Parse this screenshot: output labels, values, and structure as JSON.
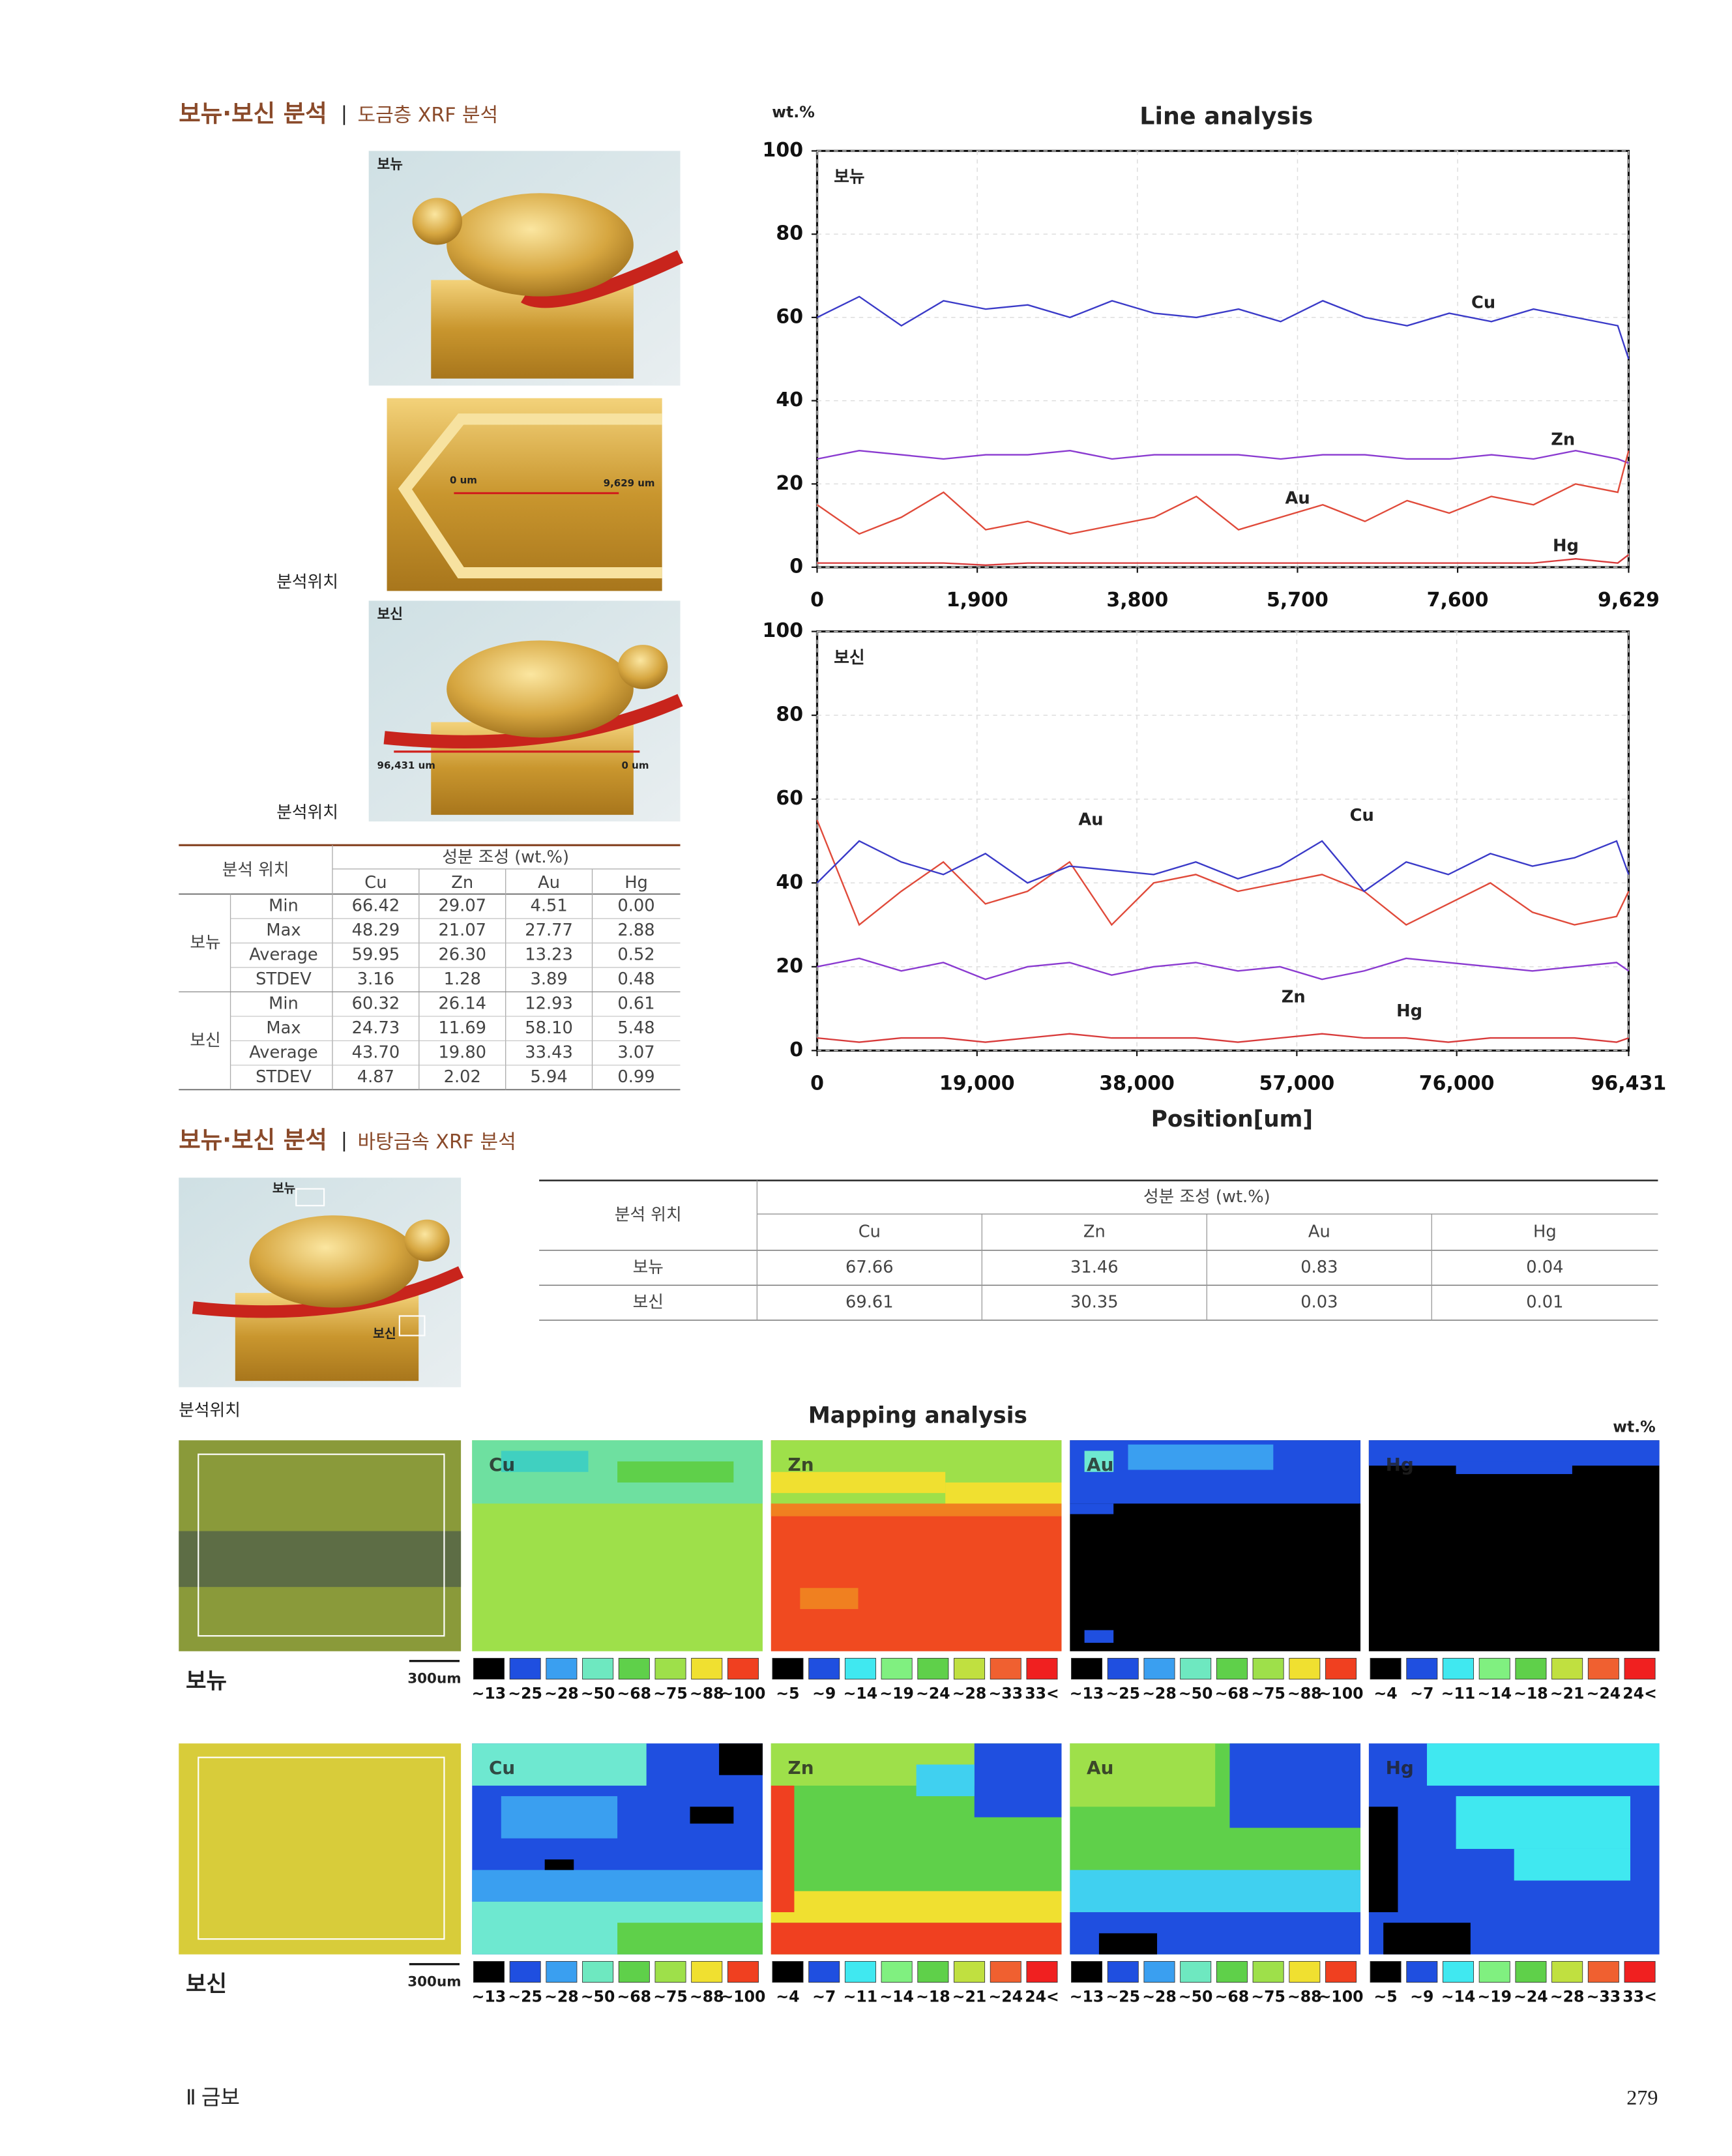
{
  "header1": {
    "title": "보뉴·보신 분석",
    "subtitle": "도금층 XRF 분석"
  },
  "photos1": {
    "bonyu": "보뉴",
    "bosin": "보신",
    "position_labels": [
      "분석위치",
      "분석위치"
    ],
    "scale_labels": [
      "0 um",
      "9,629 um",
      "96,431 um",
      "0 um"
    ]
  },
  "table1": {
    "header": [
      "분석 위치",
      "성분 조성 (wt.%)"
    ],
    "columns": [
      "Cu",
      "Zn",
      "Au",
      "Hg"
    ],
    "groups": [
      {
        "name": "보뉴",
        "rows": [
          [
            "Min",
            "66.42",
            "29.07",
            "4.51",
            "0.00"
          ],
          [
            "Max",
            "48.29",
            "21.07",
            "27.77",
            "2.88"
          ],
          [
            "Average",
            "59.95",
            "26.30",
            "13.23",
            "0.52"
          ],
          [
            "STDEV",
            "3.16",
            "1.28",
            "3.89",
            "0.48"
          ]
        ]
      },
      {
        "name": "보신",
        "rows": [
          [
            "Min",
            "60.32",
            "26.14",
            "12.93",
            "0.61"
          ],
          [
            "Max",
            "24.73",
            "11.69",
            "58.10",
            "5.48"
          ],
          [
            "Average",
            "43.70",
            "19.80",
            "33.43",
            "3.07"
          ],
          [
            "STDEV",
            "4.87",
            "2.02",
            "5.94",
            "0.99"
          ]
        ]
      }
    ]
  },
  "chart_data": [
    {
      "type": "line",
      "title": "Line analysis",
      "y_label": "wt.%",
      "panel_label": "보뉴",
      "x": [
        0,
        500,
        1000,
        1500,
        2000,
        2500,
        3000,
        3500,
        4000,
        4500,
        5000,
        5500,
        6000,
        6500,
        7000,
        7500,
        8000,
        8500,
        9000,
        9500,
        9629
      ],
      "xlim": [
        0,
        9629
      ],
      "xticks": [
        0,
        {
          "value": 1900,
          "label": "1,900"
        },
        {
          "value": 3800,
          "label": "3,800"
        },
        {
          "value": 5700,
          "label": "5,700"
        },
        {
          "value": 7600,
          "label": "7,600"
        },
        {
          "value": 9629,
          "label": "9,629"
        }
      ],
      "ylim": [
        0,
        100
      ],
      "yticks": [
        0,
        20,
        40,
        60,
        80,
        100
      ],
      "grid": true,
      "series": [
        {
          "name": "Cu",
          "color": "#3a3ac8",
          "values": [
            60,
            65,
            58,
            64,
            62,
            63,
            60,
            64,
            61,
            60,
            62,
            59,
            64,
            60,
            58,
            61,
            59,
            62,
            60,
            58,
            50
          ]
        },
        {
          "name": "Zn",
          "color": "#8a3ad0",
          "values": [
            26,
            28,
            27,
            26,
            27,
            27,
            28,
            26,
            27,
            27,
            27,
            26,
            27,
            27,
            26,
            26,
            27,
            26,
            28,
            26,
            25
          ]
        },
        {
          "name": "Au",
          "color": "#e04a3a",
          "values": [
            15,
            8,
            12,
            18,
            9,
            11,
            8,
            10,
            12,
            17,
            9,
            12,
            15,
            11,
            16,
            13,
            17,
            15,
            20,
            18,
            28
          ]
        },
        {
          "name": "Hg",
          "color": "#d83a3a",
          "values": [
            1,
            1,
            1,
            1,
            0.5,
            1,
            1,
            1,
            1,
            1,
            1,
            1,
            1,
            1,
            1,
            1,
            1,
            1,
            2,
            1,
            3
          ]
        }
      ]
    },
    {
      "type": "line",
      "panel_label": "보신",
      "x_label": "Position[um]",
      "x": [
        0,
        5000,
        10000,
        15000,
        20000,
        25000,
        30000,
        35000,
        40000,
        45000,
        50000,
        55000,
        60000,
        65000,
        70000,
        75000,
        80000,
        85000,
        90000,
        95000,
        96431
      ],
      "xlim": [
        0,
        96431
      ],
      "xticks": [
        0,
        {
          "value": 19000,
          "label": "19,000"
        },
        {
          "value": 38000,
          "label": "38,000"
        },
        {
          "value": 57000,
          "label": "57,000"
        },
        {
          "value": 76000,
          "label": "76,000"
        },
        {
          "value": 96431,
          "label": "96,431"
        }
      ],
      "ylim": [
        0,
        100
      ],
      "yticks": [
        0,
        20,
        40,
        60,
        80,
        100
      ],
      "grid": true,
      "series": [
        {
          "name": "Au",
          "color": "#e04a3a",
          "values": [
            55,
            30,
            38,
            45,
            35,
            38,
            45,
            30,
            40,
            42,
            38,
            40,
            42,
            38,
            30,
            35,
            40,
            33,
            30,
            32,
            38
          ]
        },
        {
          "name": "Cu",
          "color": "#3a3ac8",
          "values": [
            40,
            50,
            45,
            42,
            47,
            40,
            44,
            43,
            42,
            45,
            41,
            44,
            50,
            38,
            45,
            42,
            47,
            44,
            46,
            50,
            42
          ]
        },
        {
          "name": "Zn",
          "color": "#8a3ad0",
          "values": [
            20,
            22,
            19,
            21,
            17,
            20,
            21,
            18,
            20,
            21,
            19,
            20,
            17,
            19,
            22,
            21,
            20,
            19,
            20,
            21,
            19
          ]
        },
        {
          "name": "Hg",
          "color": "#d83a3a",
          "values": [
            3,
            2,
            3,
            3,
            2,
            3,
            4,
            3,
            3,
            3,
            2,
            3,
            4,
            3,
            3,
            2,
            3,
            3,
            3,
            2,
            3
          ]
        }
      ]
    }
  ],
  "header2": {
    "title": "보뉴·보신 분석",
    "subtitle": "바탕금속 XRF 분석"
  },
  "photo2": {
    "labels": [
      "보뉴",
      "보신"
    ],
    "position_label": "분석위치"
  },
  "table2": {
    "header": [
      "분석 위치",
      "성분 조성 (wt.%)"
    ],
    "columns": [
      "Cu",
      "Zn",
      "Au",
      "Hg"
    ],
    "rows": [
      [
        "보뉴",
        "67.66",
        "31.46",
        "0.83",
        "0.04"
      ],
      [
        "보신",
        "69.61",
        "30.35",
        "0.03",
        "0.01"
      ]
    ]
  },
  "mapping": {
    "title": "Mapping analysis",
    "unit": "wt.%",
    "scale": "300um",
    "rows": [
      {
        "name": "보뉴",
        "panels": [
          {
            "element": "Cu",
            "legend": [
              "~13",
              "~25",
              "~28",
              "~50",
              "~68",
              "~75",
              "~88",
              "~100"
            ]
          },
          {
            "element": "Zn",
            "legend": [
              "~5",
              "~9",
              "~14",
              "~19",
              "~24",
              "~28",
              "~33",
              "33<"
            ]
          },
          {
            "element": "Au",
            "legend": [
              "~13",
              "~25",
              "~28",
              "~50",
              "~68",
              "~75",
              "~88",
              "~100"
            ]
          },
          {
            "element": "Hg",
            "legend": [
              "~4",
              "~7",
              "~11",
              "~14",
              "~18",
              "~21",
              "~24",
              "24<"
            ]
          }
        ]
      },
      {
        "name": "보신",
        "panels": [
          {
            "element": "Cu",
            "legend": [
              "~13",
              "~25",
              "~28",
              "~50",
              "~68",
              "~75",
              "~88",
              "~100"
            ]
          },
          {
            "element": "Zn",
            "legend": [
              "~4",
              "~7",
              "~11",
              "~14",
              "~18",
              "~21",
              "~24",
              "24<"
            ]
          },
          {
            "element": "Au",
            "legend": [
              "~13",
              "~25",
              "~28",
              "~50",
              "~68",
              "~75",
              "~88",
              "~100"
            ]
          },
          {
            "element": "Hg",
            "legend": [
              "~5",
              "~9",
              "~14",
              "~19",
              "~24",
              "~28",
              "~33",
              "33<"
            ]
          }
        ]
      }
    ]
  },
  "footer": {
    "section": "Ⅱ 금보",
    "page": "279"
  }
}
